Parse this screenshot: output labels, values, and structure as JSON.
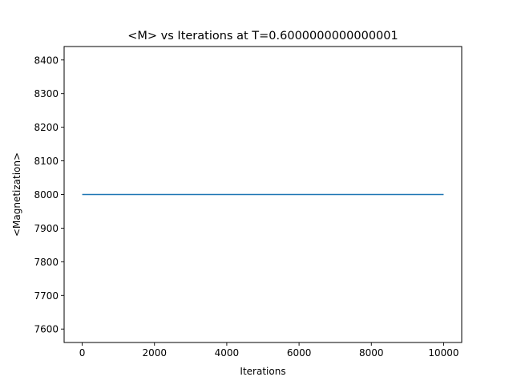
{
  "chart_data": {
    "type": "line",
    "title": "<M> vs Iterations at T=0.6000000000000001",
    "xlabel": "Iterations",
    "ylabel": "<Magnetization>",
    "xlim": [
      -500,
      10500
    ],
    "ylim": [
      7560,
      8440
    ],
    "xticks": [
      0,
      2000,
      4000,
      6000,
      8000,
      10000
    ],
    "yticks": [
      7600,
      7700,
      7800,
      7900,
      8000,
      8100,
      8200,
      8300,
      8400
    ],
    "grid": false,
    "series": [
      {
        "x": [
          0,
          10000
        ],
        "y": [
          8000,
          8000
        ],
        "color": "#1f77b4"
      }
    ]
  }
}
